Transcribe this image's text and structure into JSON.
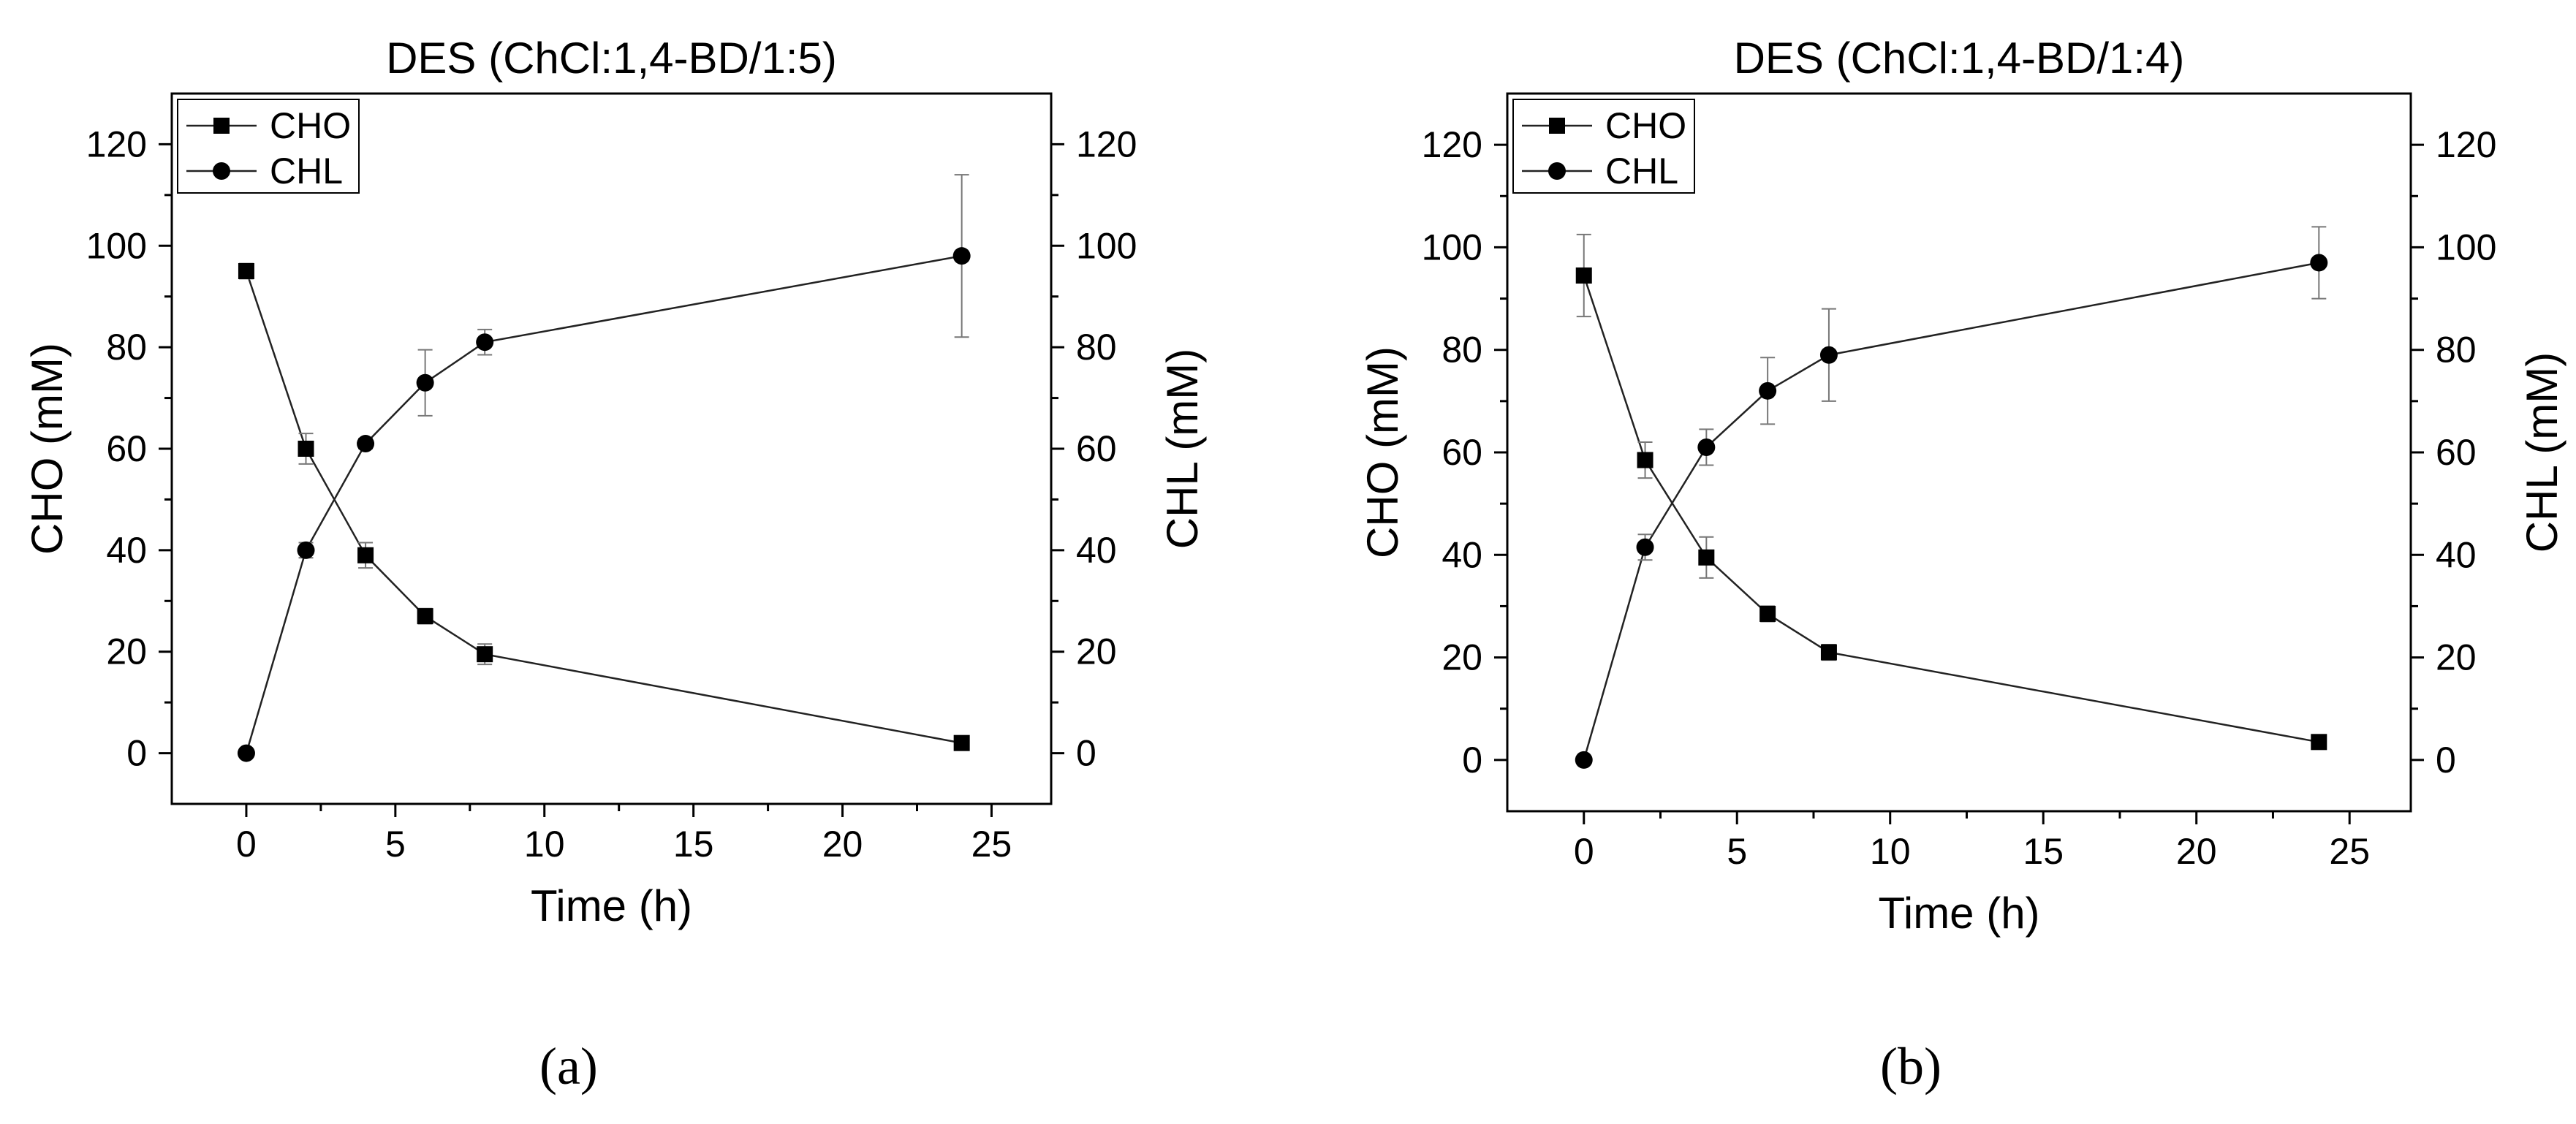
{
  "panel_labels": [
    "(a)",
    "(b)"
  ],
  "chart_data": [
    {
      "type": "line",
      "title": "DES (ChCl:1,4-BD/1:5)",
      "xlabel": "Time (h)",
      "ylabel_left": "CHO (mM)",
      "ylabel_right": "CHL (mM)",
      "xlim": [
        -2.5,
        27
      ],
      "ylim": [
        -10,
        130
      ],
      "x_ticks": [
        0,
        5,
        10,
        15,
        20,
        25
      ],
      "y_ticks": [
        0,
        20,
        40,
        60,
        80,
        100,
        120
      ],
      "legend_position": "top-left",
      "grid": false,
      "series": [
        {
          "name": "CHO",
          "marker": "square",
          "x": [
            0,
            2,
            4,
            6,
            8,
            24
          ],
          "y": [
            95,
            60,
            39,
            27,
            19.5,
            2
          ],
          "err": [
            1.5,
            3,
            2.5,
            1.5,
            2,
            1
          ]
        },
        {
          "name": "CHL",
          "marker": "circle",
          "x": [
            0,
            2,
            4,
            6,
            8,
            24
          ],
          "y": [
            0,
            40,
            61,
            73,
            81,
            98
          ],
          "err": [
            0.5,
            1.5,
            1,
            6.5,
            2.5,
            16
          ]
        }
      ]
    },
    {
      "type": "line",
      "title": "DES (ChCl:1,4-BD/1:4)",
      "xlabel": "Time (h)",
      "ylabel_left": "CHO (mM)",
      "ylabel_right": "CHL (mM)",
      "xlim": [
        -2.5,
        27
      ],
      "ylim": [
        -10,
        130
      ],
      "x_ticks": [
        0,
        5,
        10,
        15,
        20,
        25
      ],
      "y_ticks": [
        0,
        20,
        40,
        60,
        80,
        100,
        120
      ],
      "legend_position": "top-left",
      "grid": false,
      "series": [
        {
          "name": "CHO",
          "marker": "square",
          "x": [
            0,
            2,
            4,
            6,
            8,
            24
          ],
          "y": [
            94.5,
            58.5,
            39.5,
            28.5,
            21,
            3.5
          ],
          "err": [
            8,
            3.5,
            4,
            1.5,
            1.5,
            1
          ]
        },
        {
          "name": "CHL",
          "marker": "circle",
          "x": [
            0,
            2,
            4,
            6,
            8,
            24
          ],
          "y": [
            0,
            41.5,
            61,
            72,
            79,
            97
          ],
          "err": [
            0.5,
            2.5,
            3.5,
            6.5,
            9,
            7
          ]
        }
      ]
    }
  ]
}
